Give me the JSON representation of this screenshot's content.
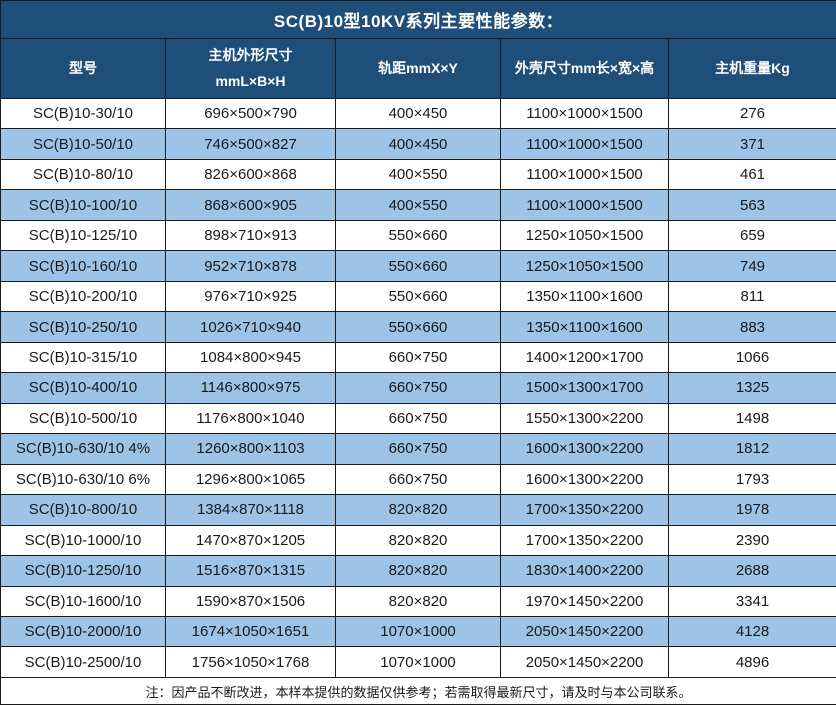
{
  "title": "SC(B)10型10KV系列主要性能参数：",
  "table": {
    "columns": [
      "型号",
      "主机外形尺寸\nmmL×B×H",
      "轨距mmX×Y",
      "外壳尺寸mm长×宽×高",
      "主机重量Kg"
    ],
    "rows": [
      [
        "SC(B)10-30/10",
        "696×500×790",
        "400×450",
        "1100×1000×1500",
        "276"
      ],
      [
        "SC(B)10-50/10",
        "746×500×827",
        "400×450",
        "1100×1000×1500",
        "371"
      ],
      [
        "SC(B)10-80/10",
        "826×600×868",
        "400×550",
        "1100×1000×1500",
        "461"
      ],
      [
        "SC(B)10-100/10",
        "868×600×905",
        "400×550",
        "1100×1000×1500",
        "563"
      ],
      [
        "SC(B)10-125/10",
        "898×710×913",
        "550×660",
        "1250×1050×1500",
        "659"
      ],
      [
        "SC(B)10-160/10",
        "952×710×878",
        "550×660",
        "1250×1050×1500",
        "749"
      ],
      [
        "SC(B)10-200/10",
        "976×710×925",
        "550×660",
        "1350×1100×1600",
        "811"
      ],
      [
        "SC(B)10-250/10",
        "1026×710×940",
        "550×660",
        "1350×1100×1600",
        "883"
      ],
      [
        "SC(B)10-315/10",
        "1084×800×945",
        "660×750",
        "1400×1200×1700",
        "1066"
      ],
      [
        "SC(B)10-400/10",
        "1146×800×975",
        "660×750",
        "1500×1300×1700",
        "1325"
      ],
      [
        "SC(B)10-500/10",
        "1176×800×1040",
        "660×750",
        "1550×1300×2200",
        "1498"
      ],
      [
        "SC(B)10-630/10 4%",
        "1260×800×1103",
        "660×750",
        "1600×1300×2200",
        "1812"
      ],
      [
        "SC(B)10-630/10 6%",
        "1296×800×1065",
        "660×750",
        "1600×1300×2200",
        "1793"
      ],
      [
        "SC(B)10-800/10",
        "1384×870×1118",
        "820×820",
        "1700×1350×2200",
        "1978"
      ],
      [
        "SC(B)10-1000/10",
        "1470×870×1205",
        "820×820",
        "1700×1350×2200",
        "2390"
      ],
      [
        "SC(B)10-1250/10",
        "1516×870×1315",
        "820×820",
        "1830×1400×2200",
        "2688"
      ],
      [
        "SC(B)10-1600/10",
        "1590×870×1506",
        "820×820",
        "1970×1450×2200",
        "3341"
      ],
      [
        "SC(B)10-2000/10",
        "1674×1050×1651",
        "1070×1000",
        "2050×1450×2200",
        "4128"
      ],
      [
        "SC(B)10-2500/10",
        "1756×1050×1768",
        "1070×1000",
        "2050×1450×2200",
        "4896"
      ]
    ]
  },
  "footnote": "注：因产品不断改进，本样本提供的数据仅供参考；若需取得最新尺寸，请及时与本公司联系。",
  "colors": {
    "header_bg": "#1F4E79",
    "alt_row_bg": "#9DC3E6",
    "border": "#1a1a1a",
    "header_text": "#FFFFFF",
    "body_text": "#1a1a1a"
  }
}
